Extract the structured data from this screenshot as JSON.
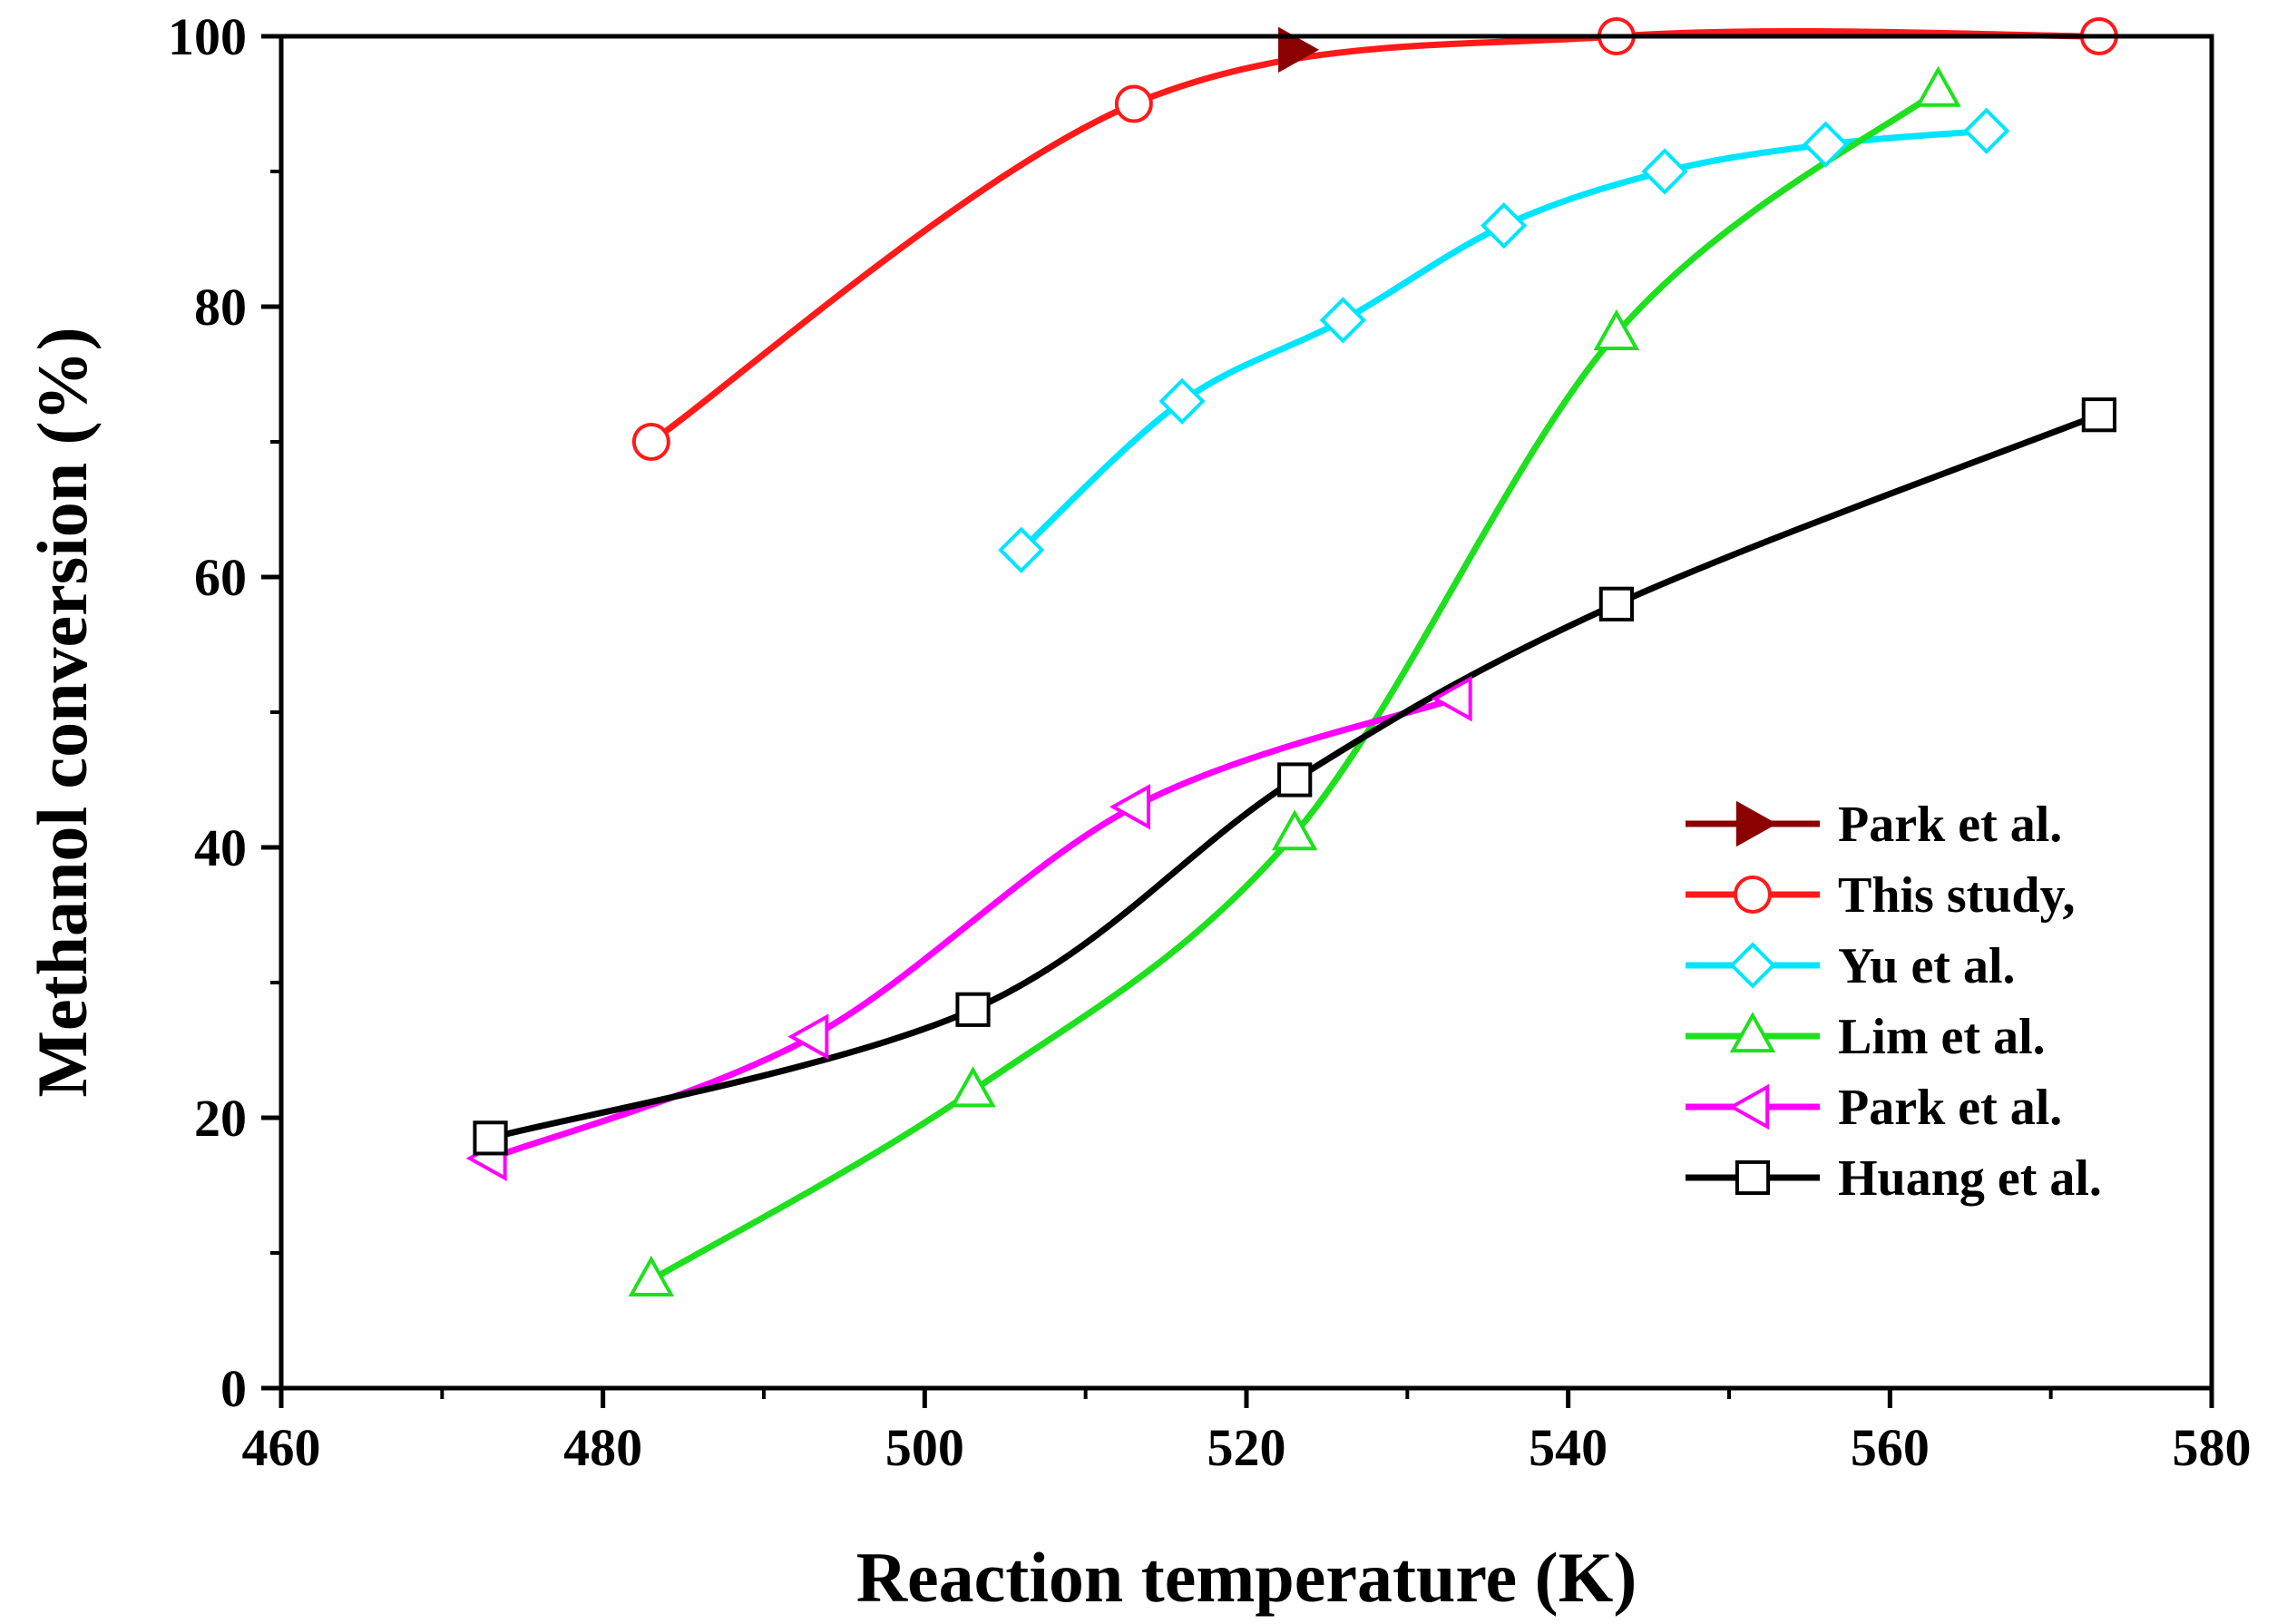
{
  "chart_data": {
    "type": "line",
    "title": "",
    "xlabel": "Reaction temperature (K)",
    "ylabel": "Methanol conversion (%)",
    "xlim": [
      460,
      580
    ],
    "ylim": [
      0,
      100
    ],
    "xticks": [
      460,
      480,
      500,
      520,
      540,
      560,
      580
    ],
    "yticks": [
      0,
      20,
      40,
      60,
      80,
      100
    ],
    "grid": false,
    "legend_position": "bottom-right",
    "series": [
      {
        "name": "Park et al.",
        "color": "#8B0000",
        "marker": "triangle-right",
        "filled": true,
        "draw_line": false,
        "x": [
          523
        ],
        "y": [
          99
        ]
      },
      {
        "name": "This study,",
        "color": "#FF1A1A",
        "marker": "circle",
        "filled": false,
        "draw_line": true,
        "x": [
          483,
          513,
          543,
          573
        ],
        "y": [
          70,
          95,
          100,
          100
        ]
      },
      {
        "name": "Yu et al.",
        "color": "#00E5FF",
        "marker": "diamond",
        "filled": false,
        "draw_line": true,
        "x": [
          506,
          516,
          526,
          536,
          546,
          556,
          566
        ],
        "y": [
          62,
          73,
          79,
          86,
          90,
          92,
          93
        ]
      },
      {
        "name": "Lim et al.",
        "color": "#1EE01E",
        "marker": "triangle-up",
        "filled": false,
        "draw_line": true,
        "x": [
          483,
          503,
          523,
          543,
          563
        ],
        "y": [
          8,
          22,
          41,
          78,
          96
        ]
      },
      {
        "name": "Park et al.",
        "color": "#FF00FF",
        "marker": "triangle-left",
        "filled": false,
        "draw_line": true,
        "x": [
          473,
          493,
          513,
          533
        ],
        "y": [
          17,
          26,
          43,
          51
        ]
      },
      {
        "name": "Huang et al.",
        "color": "#000000",
        "marker": "square",
        "filled": false,
        "draw_line": true,
        "x": [
          473,
          503,
          523,
          543,
          573
        ],
        "y": [
          18.5,
          28,
          45,
          58,
          72
        ]
      }
    ]
  }
}
